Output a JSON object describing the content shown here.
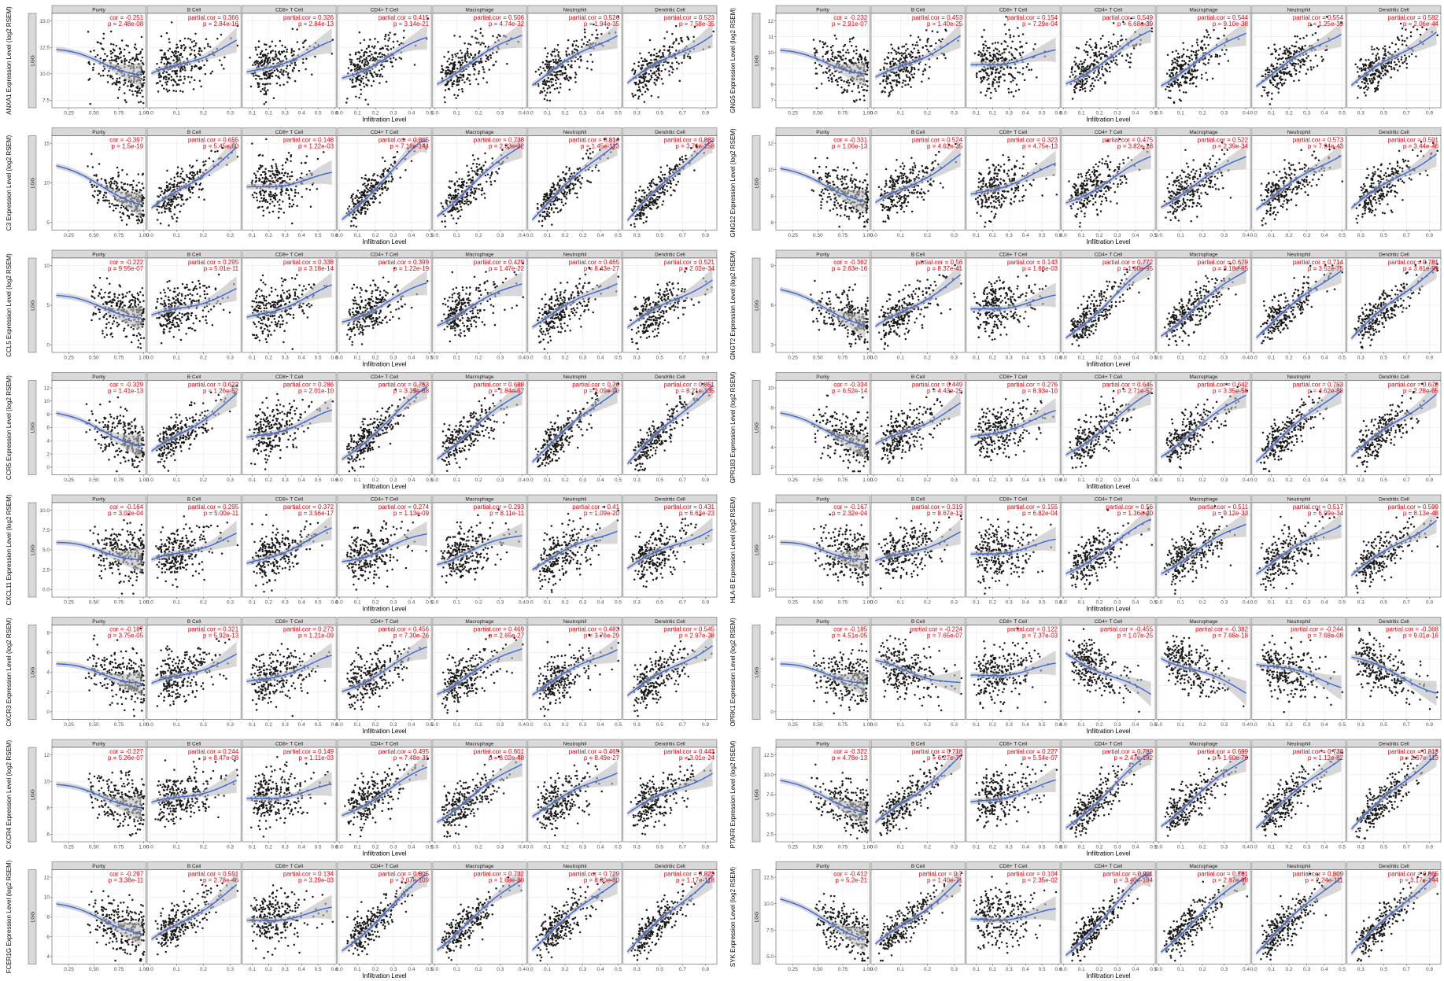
{
  "colors": {
    "points": "#1a1a1a",
    "fit": "#3366e6",
    "band": "#bdbdbd",
    "stats": "#e8000b",
    "strip": "#d9d9d9",
    "grid": "#e6e6e6"
  },
  "chart_data": {
    "type": "scatter",
    "cancer": "LGG",
    "xlabel": "Infiltration Level",
    "panels": [
      "Purity",
      "B Cell",
      "CD8+ T Cell",
      "CD4+ T Cell",
      "Macrophage",
      "Neutrophil",
      "Dendritic Cell"
    ],
    "rows": [
      {
        "gene": "ANXA1",
        "ylabel": "ANXA1 Expression Level (log2 RSEM)",
        "yticks": [
          "7.5",
          "10.0",
          "12.5",
          "15.0"
        ],
        "stats": [
          {
            "label": "cor",
            "r": "-0.251",
            "p": "2.48e-08"
          },
          {
            "label": "partial.cor",
            "r": "0.366",
            "p": "2.84e-16"
          },
          {
            "label": "partial.cor",
            "r": "0.326",
            "p": "2.84e-13"
          },
          {
            "label": "partial.cor",
            "r": "0.415",
            "p": "3.14e-21"
          },
          {
            "label": "partial.cor",
            "r": "0.506",
            "p": "4.74e-32"
          },
          {
            "label": "partial.cor",
            "r": "0.526",
            "p": "1.94e-35"
          },
          {
            "label": "partial.cor",
            "r": "0.523",
            "p": "7.58e-35"
          }
        ]
      },
      {
        "gene": "GNG5",
        "ylabel": "GNG5 Expression Level (log2 RSEM)",
        "yticks": [
          "7",
          "8",
          "9",
          "10",
          "11",
          "12"
        ],
        "stats": [
          {
            "label": "cor",
            "r": "-0.232",
            "p": "2.91e-07"
          },
          {
            "label": "partial.cor",
            "r": "0.453",
            "p": "1.40e-25"
          },
          {
            "label": "partial.cor",
            "r": "0.154",
            "p": "7.29e-04"
          },
          {
            "label": "partial.cor",
            "r": "0.549",
            "p": "6.68e-39"
          },
          {
            "label": "partial.cor",
            "r": "0.544",
            "p": "9.10e-38"
          },
          {
            "label": "partial.cor",
            "r": "0.554",
            "p": "1.25e-39"
          },
          {
            "label": "partial.cor",
            "r": "0.582",
            "p": "2.06e-44"
          }
        ]
      },
      {
        "gene": "C3",
        "ylabel": "C3 Expression Level (log2 RSEM)",
        "yticks": [
          "5",
          "10",
          "15"
        ],
        "stats": [
          {
            "label": "cor",
            "r": "-0.397",
            "p": "1.5e-19"
          },
          {
            "label": "partial.cor",
            "r": "0.655",
            "p": "5.45e-60"
          },
          {
            "label": "partial.cor",
            "r": "0.148",
            "p": "1.22e-03"
          },
          {
            "label": "partial.cor",
            "r": "0.865",
            "p": "7.18e-144"
          },
          {
            "label": "partial.cor",
            "r": "0.738",
            "p": "2.33e-82"
          },
          {
            "label": "partial.cor",
            "r": "0.814",
            "p": "1.45e-113"
          },
          {
            "label": "partial.cor",
            "r": "0.883",
            "p": "3.76e-158"
          }
        ]
      },
      {
        "gene": "GNG12",
        "ylabel": "GNG12 Expression Level (log2 RSEM)",
        "yticks": [
          "6",
          "8",
          "10",
          "12"
        ],
        "stats": [
          {
            "label": "cor",
            "r": "-0.331",
            "p": "1.06e-13"
          },
          {
            "label": "partial.cor",
            "r": "0.524",
            "p": "4.62e-35"
          },
          {
            "label": "partial.cor",
            "r": "0.323",
            "p": "4.75e-13"
          },
          {
            "label": "partial.cor",
            "r": "0.475",
            "p": "3.82e-28"
          },
          {
            "label": "partial.cor",
            "r": "0.522",
            "p": "2.39e-34"
          },
          {
            "label": "partial.cor",
            "r": "0.573",
            "p": "7.94e-43"
          },
          {
            "label": "partial.cor",
            "r": "0.591",
            "p": "3.44e-46"
          }
        ]
      },
      {
        "gene": "CCL5",
        "ylabel": "CCL5 Expression Level (log2 RSEM)",
        "yticks": [
          "0",
          "5",
          "10"
        ],
        "stats": [
          {
            "label": "cor",
            "r": "-0.222",
            "p": "9.55e-07"
          },
          {
            "label": "partial.cor",
            "r": "0.295",
            "p": "5.01e-11"
          },
          {
            "label": "partial.cor",
            "r": "0.338",
            "p": "3.18e-14"
          },
          {
            "label": "partial.cor",
            "r": "0.399",
            "p": "1.22e-19"
          },
          {
            "label": "partial.cor",
            "r": "0.429",
            "p": "1.47e-22"
          },
          {
            "label": "partial.cor",
            "r": "0.465",
            "p": "8.43e-27"
          },
          {
            "label": "partial.cor",
            "r": "0.521",
            "p": "2.02e-34"
          }
        ]
      },
      {
        "gene": "GNGT2",
        "ylabel": "GNGT2 Expression Level (log2 RSEM)",
        "yticks": [
          "3",
          "6",
          "9"
        ],
        "stats": [
          {
            "label": "cor",
            "r": "-0.362",
            "p": "2.63e-16"
          },
          {
            "label": "partial.cor",
            "r": "0.56",
            "p": "8.37e-41"
          },
          {
            "label": "partial.cor",
            "r": "0.143",
            "p": "1.66e-03"
          },
          {
            "label": "partial.cor",
            "r": "0.772",
            "p": "1.60e-95"
          },
          {
            "label": "partial.cor",
            "r": "0.679",
            "p": "3.18e-65"
          },
          {
            "label": "partial.cor",
            "r": "0.714",
            "p": "3.52e-75"
          },
          {
            "label": "partial.cor",
            "r": "0.781",
            "p": "3.61e-99"
          }
        ]
      },
      {
        "gene": "CCR5",
        "ylabel": "CCR5 Expression Level (log2 RSEM)",
        "yticks": [
          "0",
          "2",
          "4",
          "6",
          "8",
          "10",
          "12"
        ],
        "stats": [
          {
            "label": "cor",
            "r": "-0.329",
            "p": "1.41e-13"
          },
          {
            "label": "partial.cor",
            "r": "0.622",
            "p": "1.26e-52"
          },
          {
            "label": "partial.cor",
            "r": "0.286",
            "p": "2.01e-10"
          },
          {
            "label": "partial.cor",
            "r": "0.753",
            "p": "3.35e-88"
          },
          {
            "label": "partial.cor",
            "r": "0.688",
            "p": "1.84e-67"
          },
          {
            "label": "partial.cor",
            "r": "0.76",
            "p": "2.09e-90"
          },
          {
            "label": "partial.cor",
            "r": "0.851",
            "p": "8.21e-135"
          }
        ]
      },
      {
        "gene": "GPR183",
        "ylabel": "GPR183 Expression Level (log2 RSEM)",
        "yticks": [
          "2",
          "4",
          "6",
          "8",
          "10"
        ],
        "stats": [
          {
            "label": "cor",
            "r": "-0.334",
            "p": "6.52e-14"
          },
          {
            "label": "partial.cor",
            "r": "0.449",
            "p": "4.43e-25"
          },
          {
            "label": "partial.cor",
            "r": "0.276",
            "p": "8.93e-10"
          },
          {
            "label": "partial.cor",
            "r": "0.645",
            "p": "2.71e-57"
          },
          {
            "label": "partial.cor",
            "r": "0.642",
            "p": "3.35e-56"
          },
          {
            "label": "partial.cor",
            "r": "0.753",
            "p": "4.62e-88"
          },
          {
            "label": "partial.cor",
            "r": "0.678",
            "p": "2.28e-65"
          }
        ]
      },
      {
        "gene": "CXCL11",
        "ylabel": "CXCL11 Expression Level (log2 RSEM)",
        "yticks": [
          "0.0",
          "2.5",
          "5.0",
          "7.5",
          "10.0"
        ],
        "stats": [
          {
            "label": "cor",
            "r": "-0.164",
            "p": "3.02e-04"
          },
          {
            "label": "partial.cor",
            "r": "0.295",
            "p": "5.00e-11"
          },
          {
            "label": "partial.cor",
            "r": "0.372",
            "p": "3.56e-17"
          },
          {
            "label": "partial.cor",
            "r": "0.274",
            "p": "1.13e-09"
          },
          {
            "label": "partial.cor",
            "r": "0.293",
            "p": "8.11e-11"
          },
          {
            "label": "partial.cor",
            "r": "0.41",
            "p": "1.09e-20"
          },
          {
            "label": "partial.cor",
            "r": "0.431",
            "p": "6.63e-23"
          }
        ]
      },
      {
        "gene": "HLA-B",
        "ylabel": "HLA-B Expression Level (log2 RSEM)",
        "yticks": [
          "10",
          "12",
          "14",
          "16"
        ],
        "stats": [
          {
            "label": "cor",
            "r": "-0.167",
            "p": "2.32e-04"
          },
          {
            "label": "partial.cor",
            "r": "0.319",
            "p": "8.67e-13"
          },
          {
            "label": "partial.cor",
            "r": "0.155",
            "p": "6.82e-04"
          },
          {
            "label": "partial.cor",
            "r": "0.56",
            "p": "1.36e-40"
          },
          {
            "label": "partial.cor",
            "r": "0.511",
            "p": "9.12e-33"
          },
          {
            "label": "partial.cor",
            "r": "0.517",
            "p": "6.99e-34"
          },
          {
            "label": "partial.cor",
            "r": "0.599",
            "p": "8.13e-48"
          }
        ]
      },
      {
        "gene": "CXCR3",
        "ylabel": "CXCR3 Expression Level (log2 RSEM)",
        "yticks": [
          "0",
          "2",
          "4",
          "6",
          "8"
        ],
        "stats": [
          {
            "label": "cor",
            "r": "-0.187",
            "p": "3.75e-05"
          },
          {
            "label": "partial.cor",
            "r": "0.321",
            "p": "5.92e-13"
          },
          {
            "label": "partial.cor",
            "r": "0.273",
            "p": "1.21e-09"
          },
          {
            "label": "partial.cor",
            "r": "0.456",
            "p": "7.30e-26"
          },
          {
            "label": "partial.cor",
            "r": "0.469",
            "p": "2.65e-27"
          },
          {
            "label": "partial.cor",
            "r": "0.483",
            "p": "3.76e-29"
          },
          {
            "label": "partial.cor",
            "r": "0.545",
            "p": "2.97e-38"
          }
        ]
      },
      {
        "gene": "OPRK1",
        "ylabel": "OPRK1 Expression Level (log2 RSEM)",
        "yticks": [
          "0",
          "2",
          "4",
          "6"
        ],
        "stats": [
          {
            "label": "cor",
            "r": "-0.185",
            "p": "4.51e-05"
          },
          {
            "label": "partial.cor",
            "r": "-0.224",
            "p": "7.65e-07"
          },
          {
            "label": "partial.cor",
            "r": "0.122",
            "p": "7.37e-03"
          },
          {
            "label": "partial.cor",
            "r": "-0.455",
            "p": "1.07e-25"
          },
          {
            "label": "partial.cor",
            "r": "-0.382",
            "p": "7.68e-18"
          },
          {
            "label": "partial.cor",
            "r": "-0.244",
            "p": "7.68e-08"
          },
          {
            "label": "partial.cor",
            "r": "-0.368",
            "p": "9.01e-16"
          }
        ]
      },
      {
        "gene": "CXCR4",
        "ylabel": "CXCR4 Expression Level (log2 RSEM)",
        "yticks": [
          "6",
          "8",
          "10",
          "12"
        ],
        "stats": [
          {
            "label": "cor",
            "r": "-0.227",
            "p": "5.26e-07"
          },
          {
            "label": "partial.cor",
            "r": "0.244",
            "p": "8.47e-08"
          },
          {
            "label": "partial.cor",
            "r": "0.149",
            "p": "1.11e-03"
          },
          {
            "label": "partial.cor",
            "r": "0.495",
            "p": "7.48e-31"
          },
          {
            "label": "partial.cor",
            "r": "0.601",
            "p": "8.02e-48"
          },
          {
            "label": "partial.cor",
            "r": "0.465",
            "p": "8.49e-27"
          },
          {
            "label": "partial.cor",
            "r": "0.443",
            "p": "3.01e-24"
          }
        ]
      },
      {
        "gene": "PTAFR",
        "ylabel": "PTAFR Expression Level (log2 RSEM)",
        "yticks": [
          "2.5",
          "5.0",
          "7.5",
          "10.0",
          "12.5"
        ],
        "stats": [
          {
            "label": "cor",
            "r": "-0.322",
            "p": "4.78e-13"
          },
          {
            "label": "partial.cor",
            "r": "0.718",
            "p": "6.27e-77"
          },
          {
            "label": "partial.cor",
            "r": "0.227",
            "p": "5.54e-07"
          },
          {
            "label": "partial.cor",
            "r": "0.789",
            "p": "2.47e-102"
          },
          {
            "label": "partial.cor",
            "r": "0.699",
            "p": "1.60e-70"
          },
          {
            "label": "partial.cor",
            "r": "0.738",
            "p": "1.12e-82"
          },
          {
            "label": "partial.cor",
            "r": "0.813",
            "p": "2.57e-113"
          }
        ]
      },
      {
        "gene": "FCER1G",
        "ylabel": "FCER1G Expression Level (log2 RSEM)",
        "yticks": [
          "4",
          "6",
          "8",
          "10",
          "12"
        ],
        "stats": [
          {
            "label": "cor",
            "r": "-0.297",
            "p": "3.38e-11"
          },
          {
            "label": "partial.cor",
            "r": "0.591",
            "p": "2.78e-46"
          },
          {
            "label": "partial.cor",
            "r": "0.134",
            "p": "3.29e-03"
          },
          {
            "label": "partial.cor",
            "r": "0.805",
            "p": "2.07e-109"
          },
          {
            "label": "partial.cor",
            "r": "0.732",
            "p": "1.68e-80"
          },
          {
            "label": "partial.cor",
            "r": "0.729",
            "p": "8.80e-80"
          },
          {
            "label": "partial.cor",
            "r": "0.823",
            "p": "1.17e-118"
          }
        ]
      },
      {
        "gene": "SYK",
        "ylabel": "SYK Expression Level (log2 RSEM)",
        "yticks": [
          "5.0",
          "7.5",
          "10.0",
          "12.5"
        ],
        "stats": [
          {
            "label": "cor",
            "r": "-0.412",
            "p": "5.2e-21"
          },
          {
            "label": "partial.cor",
            "r": "0.7",
            "p": "1.40e-71"
          },
          {
            "label": "partial.cor",
            "r": "0.104",
            "p": "2.35e-02"
          },
          {
            "label": "partial.cor",
            "r": "0.911",
            "p": "3.40e-184"
          },
          {
            "label": "partial.cor",
            "r": "0.781",
            "p": "2.87e-98"
          },
          {
            "label": "partial.cor",
            "r": "0.809",
            "p": "2.24e-111"
          },
          {
            "label": "partial.cor",
            "r": "0.865",
            "p": "3.17e-144"
          }
        ]
      }
    ],
    "xticks": {
      "Purity": [
        "0.25",
        "0.50",
        "0.75",
        "1.00"
      ],
      "B Cell": [
        "0.0",
        "0.1",
        "0.2",
        "0.3"
      ],
      "CD8+ T Cell": [
        "0.1",
        "0.2",
        "0.3",
        "0.4",
        "0.5",
        "0.6"
      ],
      "CD4+ T Cell": [
        "0.0",
        "0.1",
        "0.2",
        "0.3",
        "0.4",
        "0.5"
      ],
      "Macrophage": [
        "0.0",
        "0.1",
        "0.2",
        "0.3",
        "0.4"
      ],
      "Neutrophil": [
        "0.0",
        "0.1",
        "0.2",
        "0.3",
        "0.4",
        "0.5"
      ],
      "Dendritic Cell": [
        "0.3",
        "0.5",
        "0.7",
        "0.9"
      ]
    },
    "xlim": {
      "Purity": [
        0.08,
        1.02
      ],
      "B Cell": [
        -0.01,
        0.34
      ],
      "CD8+ T Cell": [
        0.04,
        0.61
      ],
      "CD4+ T Cell": [
        -0.01,
        0.51
      ],
      "Macrophage": [
        -0.01,
        0.42
      ],
      "Neutrophil": [
        -0.01,
        0.52
      ],
      "Dendritic Cell": [
        0.18,
        1.0
      ]
    }
  }
}
